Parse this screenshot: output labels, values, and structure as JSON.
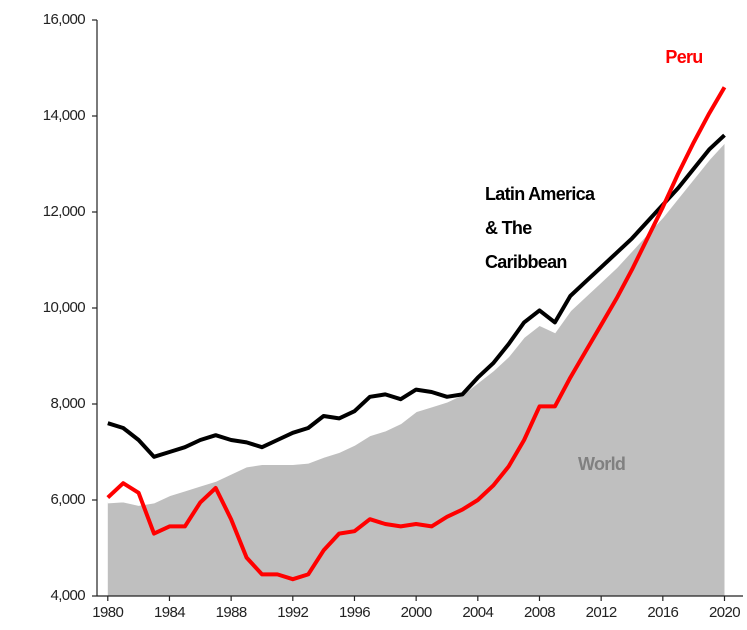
{
  "chart_data": {
    "type": "line",
    "x": [
      1980,
      1981,
      1982,
      1983,
      1984,
      1985,
      1986,
      1987,
      1988,
      1989,
      1990,
      1991,
      1992,
      1993,
      1994,
      1995,
      1996,
      1997,
      1998,
      1999,
      2000,
      2001,
      2002,
      2003,
      2004,
      2005,
      2006,
      2007,
      2008,
      2009,
      2010,
      2011,
      2012,
      2013,
      2014,
      2015,
      2016,
      2017,
      2018,
      2019,
      2020
    ],
    "series": [
      {
        "name": "World",
        "color": "#bfbfbf",
        "kind": "area",
        "values": [
          5950,
          5970,
          5900,
          5950,
          6100,
          6200,
          6300,
          6400,
          6550,
          6700,
          6750,
          6750,
          6750,
          6780,
          6900,
          7000,
          7150,
          7350,
          7450,
          7600,
          7850,
          7950,
          8050,
          8200,
          8450,
          8700,
          9000,
          9400,
          9650,
          9500,
          9950,
          10250,
          10550,
          10850,
          11200,
          11550,
          11900,
          12300,
          12700,
          13100,
          13450
        ]
      },
      {
        "name": "Latin America & The Caribbean",
        "color": "#000000",
        "kind": "line",
        "values": [
          7600,
          7500,
          7250,
          6900,
          7000,
          7100,
          7250,
          7350,
          7250,
          7200,
          7100,
          7250,
          7400,
          7500,
          7750,
          7700,
          7850,
          8150,
          8200,
          8100,
          8300,
          8250,
          8150,
          8200,
          8550,
          8850,
          9250,
          9700,
          9950,
          9700,
          10250,
          10550,
          10850,
          11150,
          11450,
          11800,
          12150,
          12500,
          12900,
          13300,
          13600
        ]
      },
      {
        "name": "Peru",
        "color": "#ff0000",
        "kind": "line",
        "values": [
          6050,
          6350,
          6150,
          5300,
          5450,
          5450,
          5950,
          6250,
          5600,
          4800,
          4450,
          4450,
          4350,
          4450,
          4950,
          5300,
          5350,
          5600,
          5500,
          5450,
          5500,
          5450,
          5650,
          5800,
          6000,
          6300,
          6700,
          7250,
          7950,
          7950,
          8550,
          9100,
          9650,
          10200,
          10800,
          11450,
          12100,
          12800,
          13450,
          14050,
          14600
        ]
      }
    ],
    "annotations": [
      {
        "lines": [
          "Peru"
        ],
        "color": "#ff0000"
      },
      {
        "lines": [
          "Latin America",
          "& The",
          "Caribbean"
        ],
        "color": "#000000"
      },
      {
        "lines": [
          "World"
        ],
        "color": "#808080"
      }
    ],
    "xlim": [
      1979.3,
      2021.2
    ],
    "xticks": [
      1980,
      1984,
      1988,
      1992,
      1996,
      2000,
      2004,
      2008,
      2012,
      2016,
      2020
    ],
    "ylim": [
      4000,
      16000
    ],
    "yticks": [
      {
        "value": 4000,
        "label": "4,000"
      },
      {
        "value": 6000,
        "label": "6,000"
      },
      {
        "value": 8000,
        "label": "8,000"
      },
      {
        "value": 10000,
        "label": "10,000"
      },
      {
        "value": 12000,
        "label": "12,000"
      },
      {
        "value": 14000,
        "label": "14,000"
      },
      {
        "value": 16000,
        "label": "16,000"
      }
    ]
  }
}
